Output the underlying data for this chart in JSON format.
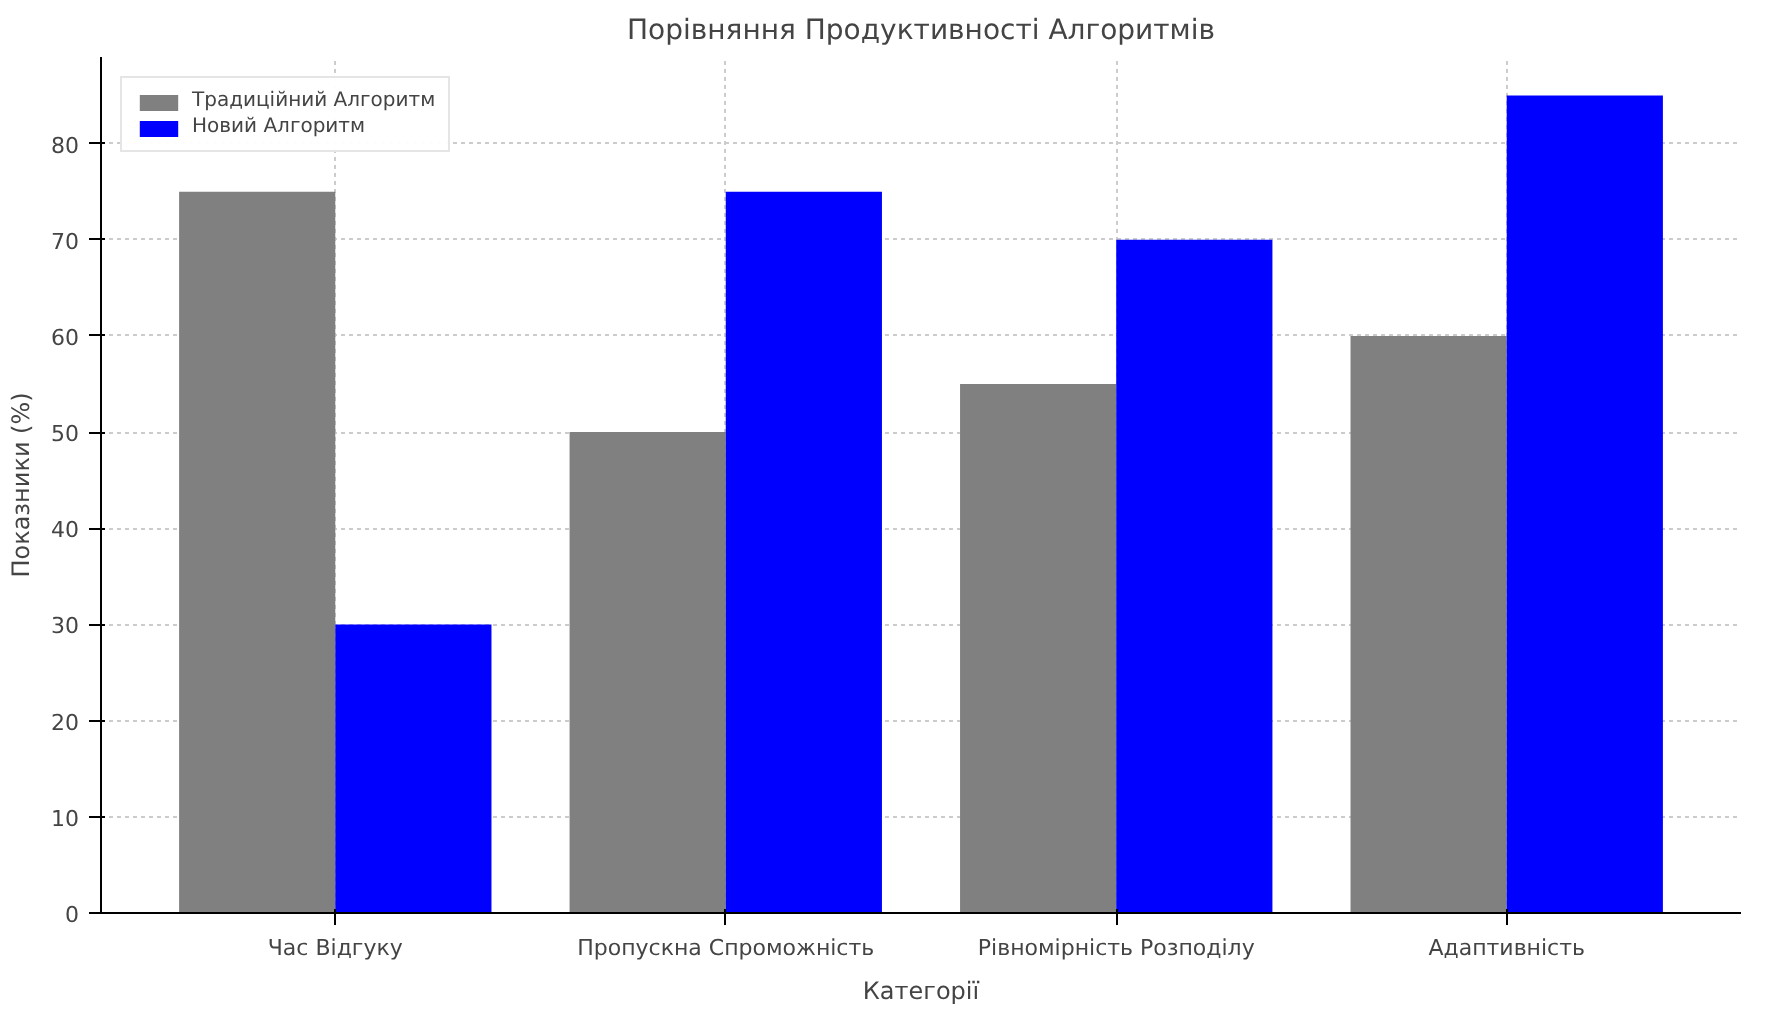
{
  "chart_data": {
    "type": "bar",
    "title": "Порівняння Продуктивності Алгоритмів",
    "xlabel": "Категорії",
    "ylabel": "Показники (%)",
    "categories": [
      "Час Відгуку",
      "Пропускна Спроможність",
      "Рівномірність Розподілу",
      "Адаптивність"
    ],
    "series": [
      {
        "name": "Традиційний Алгоритм",
        "color": "#808080",
        "values": [
          75,
          50,
          55,
          60
        ]
      },
      {
        "name": "Новий Алгоритм",
        "color": "#0000ff",
        "values": [
          30,
          75,
          70,
          85
        ]
      }
    ],
    "ylim": [
      0,
      89
    ],
    "yticks": [
      0,
      10,
      20,
      30,
      40,
      50,
      60,
      70,
      80
    ],
    "grid": true,
    "legend": "top left"
  }
}
